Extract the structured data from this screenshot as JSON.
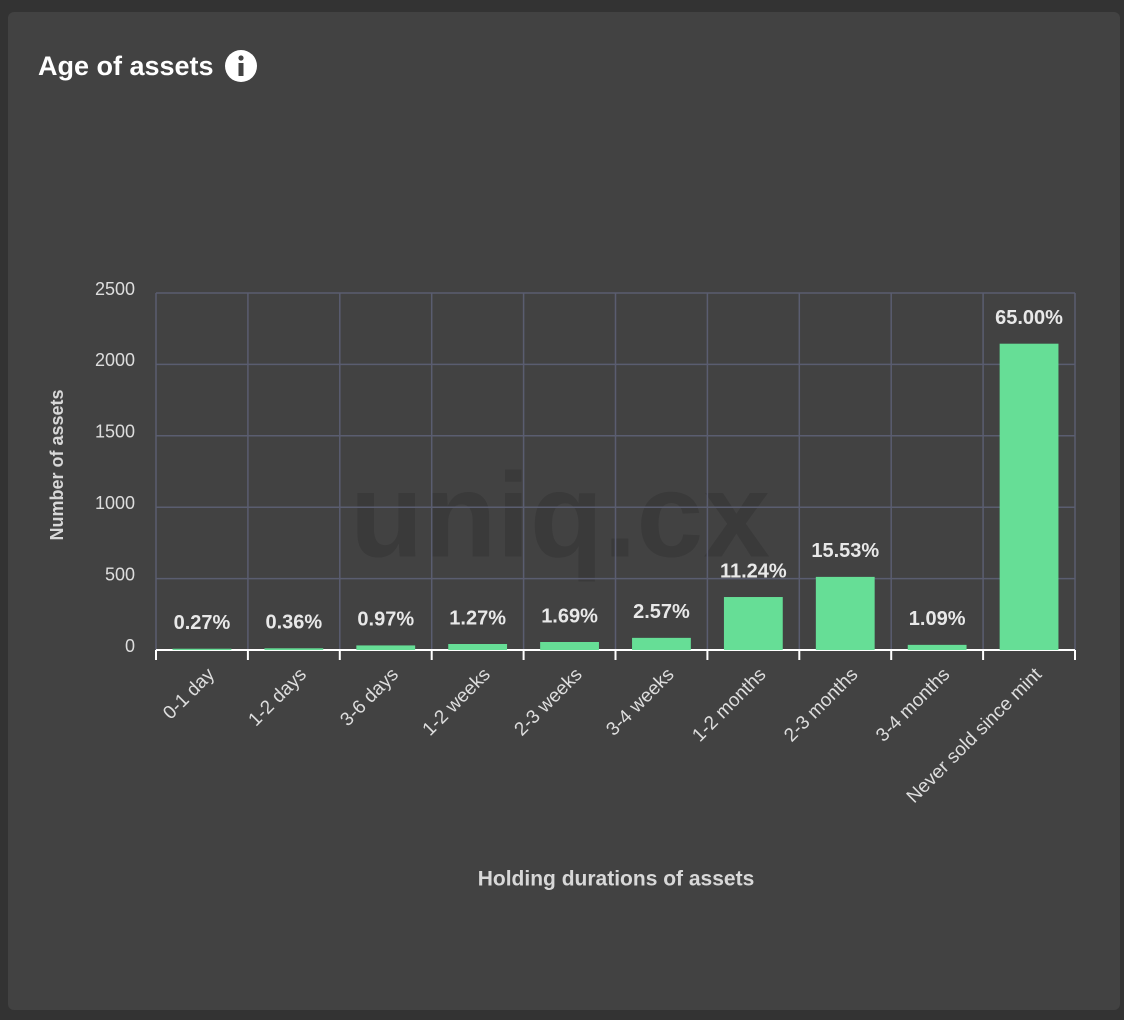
{
  "chart_data": {
    "type": "bar",
    "title": "Age of assets",
    "watermark": "uniq.cx",
    "x_label": "Holding durations of assets",
    "y_label": "Number of assets",
    "categories": [
      "0-1 day",
      "1-2 days",
      "3-6 days",
      "1-2 weeks",
      "2-3 weeks",
      "3-4 weeks",
      "1-2 months",
      "2-3 months",
      "3-4 months",
      "Never sold since mint"
    ],
    "values": [
      9,
      12,
      32,
      42,
      56,
      85,
      371,
      512,
      36,
      2145
    ],
    "percent_labels": [
      "0.27%",
      "0.36%",
      "0.97%",
      "1.27%",
      "1.69%",
      "2.57%",
      "11.24%",
      "15.53%",
      "1.09%",
      "65.00%"
    ],
    "color": "#66de96",
    "ylim": [
      0,
      2500
    ],
    "yticks": [
      0,
      500,
      1000,
      1500,
      2000,
      2500
    ],
    "grid": true
  }
}
